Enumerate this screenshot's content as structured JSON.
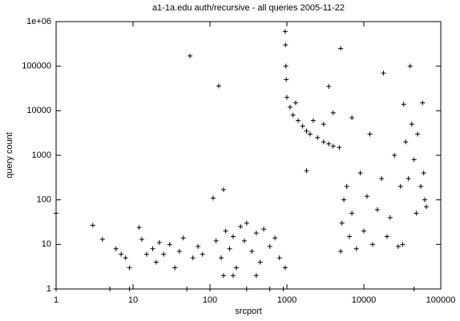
{
  "chart_data": {
    "type": "scatter",
    "title": "a1-1a.edu auth/recursive - all queries 2005-11-22",
    "xlabel": "srcport",
    "ylabel": "query count",
    "xscale": "log",
    "yscale": "log",
    "color": "#000000",
    "xlim": [
      1,
      100000
    ],
    "ylim": [
      1,
      1000000
    ],
    "xticks": [
      1,
      10,
      100,
      1000,
      10000,
      100000
    ],
    "yticks": [
      1,
      10,
      100,
      1000,
      10000,
      100000,
      {
        "value": 1000000,
        "label": "1e+06"
      }
    ],
    "x": [
      1,
      1,
      3,
      4,
      5,
      6,
      7,
      8,
      9,
      9,
      12,
      13,
      15,
      18,
      20,
      22,
      25,
      30,
      35,
      40,
      45,
      50,
      55,
      60,
      70,
      80,
      100,
      110,
      120,
      130,
      140,
      150,
      160,
      180,
      200,
      220,
      250,
      280,
      300,
      350,
      400,
      450,
      500,
      600,
      700,
      800,
      900,
      950,
      600,
      300,
      200,
      150,
      400,
      950,
      960,
      970,
      980,
      1000,
      1100,
      1200,
      1400,
      1600,
      1800,
      2000,
      2500,
      3000,
      3500,
      4000,
      4800,
      1300,
      2200,
      3000,
      3500,
      4000,
      1800,
      5000,
      7000,
      5000,
      5200,
      5500,
      6000,
      6500,
      7000,
      8000,
      9000,
      10000,
      11000,
      12000,
      13000,
      15000,
      17000,
      18000,
      20000,
      22000,
      25000,
      28000,
      30000,
      32000,
      33000,
      35000,
      38000,
      40000,
      42000,
      45000,
      48000,
      50000,
      55000,
      58000,
      60000,
      62000,
      65000,
      45000
    ],
    "values": [
      50,
      1,
      27,
      13,
      1,
      8,
      6,
      5,
      3,
      1,
      24,
      13,
      6,
      8,
      4,
      11,
      6,
      10,
      3,
      7,
      14,
      1,
      170000,
      5,
      9,
      6,
      1,
      110,
      12,
      36000,
      5,
      170,
      20,
      8,
      15,
      3,
      25,
      12,
      30,
      7,
      18,
      4,
      22,
      9,
      14,
      5,
      1,
      3,
      1,
      1,
      2,
      2,
      2,
      600000,
      300000,
      100000,
      50000,
      20000,
      12000,
      8000,
      6000,
      4500,
      3500,
      3000,
      2500,
      2000,
      1800,
      1600,
      1500,
      15000,
      6000,
      5000,
      35000,
      9000,
      450,
      250000,
      7000,
      7,
      30,
      100,
      200,
      15,
      50,
      8,
      400,
      20,
      120,
      3000,
      10,
      60,
      300,
      70000,
      15,
      40,
      1000,
      9,
      200,
      10,
      14000,
      2000,
      300,
      100000,
      5000,
      800,
      50,
      3000,
      200,
      15000,
      400,
      100,
      70,
      1
    ]
  }
}
